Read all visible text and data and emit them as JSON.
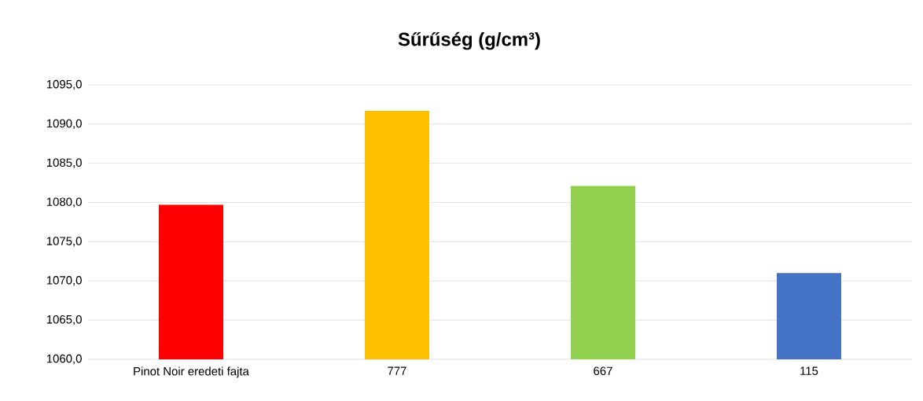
{
  "chart_data": {
    "type": "bar",
    "title": "Sűrűség (g/cm³)",
    "categories": [
      "Pinot Noir eredeti fajta",
      "777",
      "667",
      "115"
    ],
    "values": [
      1079.7,
      1091.7,
      1082.1,
      1071.0
    ],
    "colors": [
      "#ff0000",
      "#ffc000",
      "#92d050",
      "#4472c4"
    ],
    "ylim": [
      1060,
      1095
    ],
    "yticks": [
      {
        "value": 1060,
        "label": "1060,0"
      },
      {
        "value": 1065,
        "label": "1065,0"
      },
      {
        "value": 1070,
        "label": "1070,0"
      },
      {
        "value": 1075,
        "label": "1075,0"
      },
      {
        "value": 1080,
        "label": "1080,0"
      },
      {
        "value": 1085,
        "label": "1085,0"
      },
      {
        "value": 1090,
        "label": "1090,0"
      },
      {
        "value": 1095,
        "label": "1095,0"
      }
    ],
    "grid": "y"
  }
}
